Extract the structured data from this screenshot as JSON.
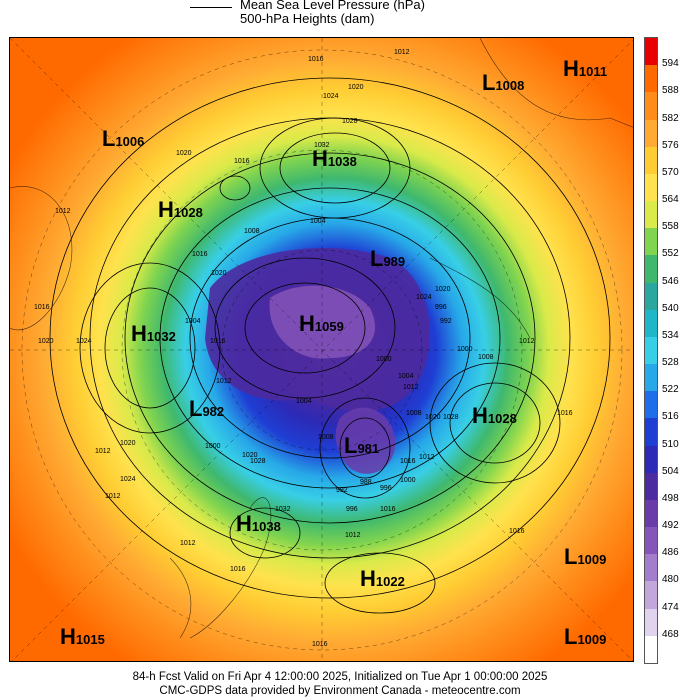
{
  "legend": {
    "mslp_label": "Mean Sea Level Pressure (hPa)",
    "heights_label": "500-hPa Heights (dam)"
  },
  "colorbar": {
    "labels": [
      "594",
      "588",
      "582",
      "576",
      "570",
      "564",
      "558",
      "552",
      "546",
      "540",
      "534",
      "528",
      "522",
      "516",
      "510",
      "504",
      "498",
      "492",
      "486",
      "480",
      "474",
      "468"
    ],
    "colors": [
      "#e80000",
      "#ff6a00",
      "#ff8c1a",
      "#ffaa33",
      "#ffcc33",
      "#ffe24d",
      "#d9ea4a",
      "#80d44f",
      "#3fb86e",
      "#2aa79e",
      "#1fb6c7",
      "#38cfe6",
      "#27a8e8",
      "#1d6ee8",
      "#1f3ed4",
      "#2c2ab6",
      "#4c2a9f",
      "#6a3ca9",
      "#8555b9",
      "#a37dcc",
      "#c2a6dc",
      "#e0d3ee",
      "#ffffff"
    ]
  },
  "systems": [
    {
      "id": "sys-1",
      "type": "L",
      "value": "1006"
    },
    {
      "id": "sys-2",
      "type": "H",
      "value": "1038"
    },
    {
      "id": "sys-3",
      "type": "L",
      "value": "1008"
    },
    {
      "id": "sys-4",
      "type": "H",
      "value": "1011"
    },
    {
      "id": "sys-5",
      "type": "H",
      "value": "1028"
    },
    {
      "id": "sys-6",
      "type": "L",
      "value": "989"
    },
    {
      "id": "sys-7",
      "type": "H",
      "value": "1032"
    },
    {
      "id": "sys-8",
      "type": "H",
      "value": "1059"
    },
    {
      "id": "sys-9",
      "type": "L",
      "value": "982"
    },
    {
      "id": "sys-10",
      "type": "H",
      "value": "1028"
    },
    {
      "id": "sys-11",
      "type": "L",
      "value": "981"
    },
    {
      "id": "sys-12",
      "type": "H",
      "value": "1038"
    },
    {
      "id": "sys-13",
      "type": "H",
      "value": "1022"
    },
    {
      "id": "sys-14",
      "type": "L",
      "value": "1009"
    },
    {
      "id": "sys-15",
      "type": "H",
      "value": "1015"
    },
    {
      "id": "sys-16",
      "type": "L",
      "value": "1009"
    }
  ],
  "isobar_labels": [
    "1016",
    "1012",
    "1020",
    "1024",
    "1028",
    "1032",
    "1016",
    "1020",
    "1008",
    "1012",
    "1016",
    "1020",
    "1024",
    "1004",
    "1016",
    "1020",
    "1024",
    "1020",
    "992",
    "1000",
    "1008",
    "1012",
    "1016",
    "1012",
    "1016",
    "1016",
    "1020",
    "1028",
    "1012",
    "1016",
    "1016",
    "1012",
    "1012",
    "1020",
    "1024",
    "1016",
    "1032",
    "1028",
    "1020",
    "1000",
    "1004",
    "1008",
    "1012",
    "1008",
    "1004",
    "1000",
    "996",
    "996",
    "988",
    "992",
    "996",
    "1000",
    "1004",
    "1012",
    "1016",
    "1012"
  ],
  "footer": {
    "line1": "84-h Fcst Valid on Fri Apr  4 12:00:00 2025, Initialized on Tue Apr  1 00:00:00 2025",
    "line2": "CMC-GDPS data provided by Environment Canada - meteocentre.com"
  }
}
